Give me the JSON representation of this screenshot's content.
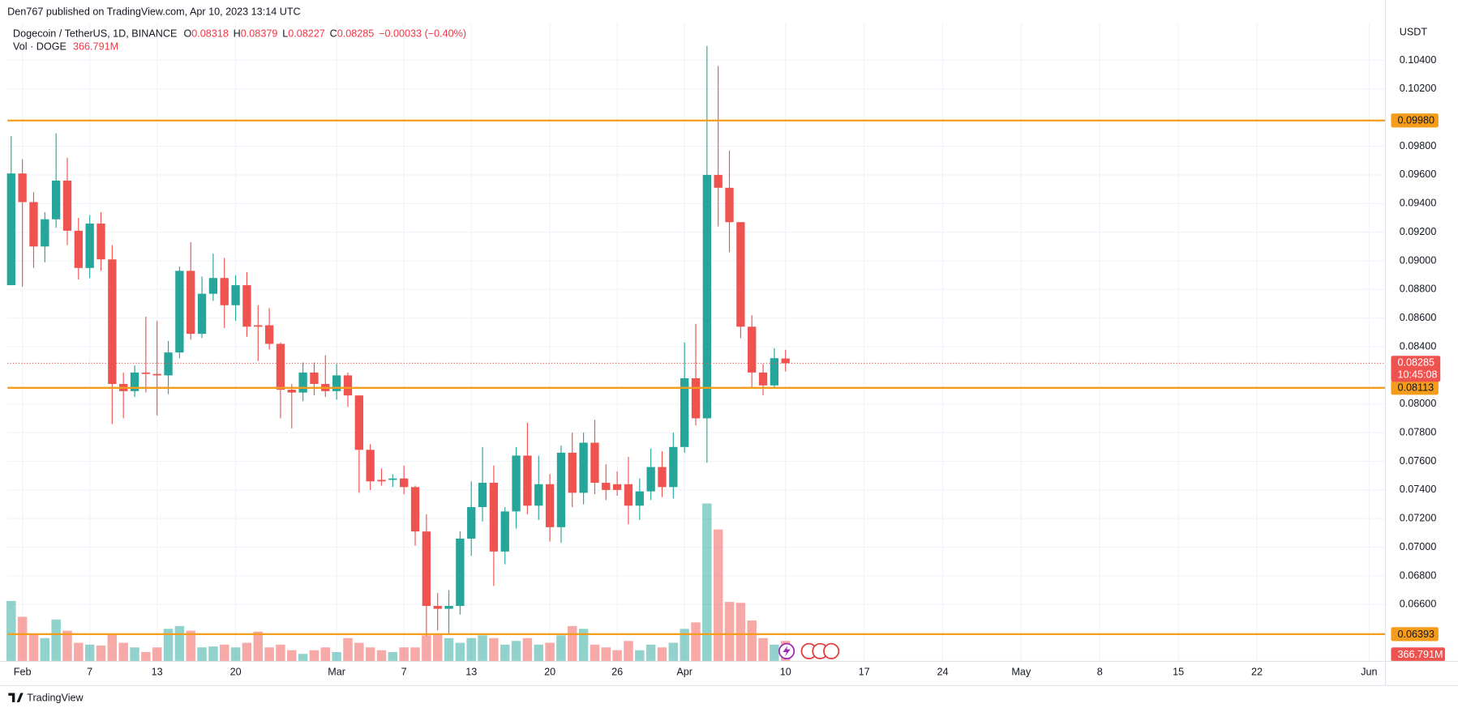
{
  "chart_data": {
    "type": "candlestick",
    "publisher": "Den767 published on TradingView.com, Apr 10, 2023 13:14 UTC",
    "title": "Dogecoin / TetherUS, 1D, BINANCE",
    "ohlc_labels": [
      "O",
      "H",
      "L",
      "C"
    ],
    "change_label": "−0.00033 (−0.40%)",
    "y_axis_label": "USDT",
    "countdown": "10:45:08",
    "brand": "TradingView",
    "up_color": "#26a69a",
    "down_color": "#ef5350",
    "up_volume_color": "rgba(38,166,154,0.5)",
    "down_volume_color": "rgba(239,83,80,0.5)",
    "grid": true,
    "x": [
      "2023-01-31",
      "2023-02-01",
      "2023-02-02",
      "2023-02-03",
      "2023-02-04",
      "2023-02-05",
      "2023-02-06",
      "2023-02-07",
      "2023-02-08",
      "2023-02-09",
      "2023-02-10",
      "2023-02-11",
      "2023-02-12",
      "2023-02-13",
      "2023-02-14",
      "2023-02-15",
      "2023-02-16",
      "2023-02-17",
      "2023-02-18",
      "2023-02-19",
      "2023-02-20",
      "2023-02-21",
      "2023-02-22",
      "2023-02-23",
      "2023-02-24",
      "2023-02-25",
      "2023-02-26",
      "2023-02-27",
      "2023-02-28",
      "2023-03-01",
      "2023-03-02",
      "2023-03-03",
      "2023-03-04",
      "2023-03-05",
      "2023-03-06",
      "2023-03-07",
      "2023-03-08",
      "2023-03-09",
      "2023-03-10",
      "2023-03-11",
      "2023-03-12",
      "2023-03-13",
      "2023-03-14",
      "2023-03-15",
      "2023-03-16",
      "2023-03-17",
      "2023-03-18",
      "2023-03-19",
      "2023-03-20",
      "2023-03-21",
      "2023-03-22",
      "2023-03-23",
      "2023-03-24",
      "2023-03-25",
      "2023-03-26",
      "2023-03-27",
      "2023-03-28",
      "2023-03-29",
      "2023-03-30",
      "2023-03-31",
      "2023-04-01",
      "2023-04-02",
      "2023-04-03",
      "2023-04-04",
      "2023-04-05",
      "2023-04-06",
      "2023-04-07",
      "2023-04-08",
      "2023-04-09",
      "2023-04-10"
    ],
    "open": [
      0.0883,
      0.0961,
      0.0941,
      0.091,
      0.0929,
      0.0956,
      0.0921,
      0.0895,
      0.0926,
      0.0901,
      0.0814,
      0.0809,
      0.0822,
      0.0821,
      0.082,
      0.0836,
      0.0893,
      0.0849,
      0.0877,
      0.0888,
      0.0869,
      0.0883,
      0.0855,
      0.0855,
      0.0842,
      0.081,
      0.0808,
      0.0822,
      0.0814,
      0.0809,
      0.082,
      0.0806,
      0.0768,
      0.0747,
      0.0747,
      0.0748,
      0.0742,
      0.0711,
      0.0659,
      0.0657,
      0.0659,
      0.0706,
      0.0728,
      0.0745,
      0.0697,
      0.0725,
      0.0764,
      0.0729,
      0.0744,
      0.0714,
      0.0766,
      0.0738,
      0.0773,
      0.0745,
      0.0744,
      0.0744,
      0.0729,
      0.0739,
      0.0756,
      0.0742,
      0.077,
      0.0818,
      0.079,
      0.096,
      0.0951,
      0.0927,
      0.0854,
      0.0822,
      0.0813,
      0.08318
    ],
    "high": [
      0.0987,
      0.0971,
      0.0948,
      0.0934,
      0.0989,
      0.0972,
      0.093,
      0.0932,
      0.0934,
      0.0911,
      0.0822,
      0.0827,
      0.0861,
      0.0858,
      0.0844,
      0.0896,
      0.0913,
      0.0889,
      0.0905,
      0.0902,
      0.089,
      0.0892,
      0.0869,
      0.0867,
      0.0843,
      0.0814,
      0.0829,
      0.0829,
      0.0834,
      0.0828,
      0.0822,
      0.0806,
      0.0772,
      0.0755,
      0.0751,
      0.0757,
      0.0743,
      0.0723,
      0.0668,
      0.067,
      0.0711,
      0.0746,
      0.077,
      0.0757,
      0.0728,
      0.077,
      0.0787,
      0.0764,
      0.0751,
      0.0771,
      0.078,
      0.078,
      0.0789,
      0.0758,
      0.0753,
      0.0763,
      0.0748,
      0.0769,
      0.0767,
      0.078,
      0.0843,
      0.0856,
      0.105,
      0.1036,
      0.0977,
      0.0927,
      0.0862,
      0.0828,
      0.0839,
      0.08379
    ],
    "low": [
      0.0883,
      0.0882,
      0.0895,
      0.0899,
      0.0923,
      0.0911,
      0.0887,
      0.0888,
      0.0893,
      0.0786,
      0.079,
      0.0805,
      0.0808,
      0.0792,
      0.0807,
      0.0832,
      0.0845,
      0.0846,
      0.0872,
      0.0853,
      0.0858,
      0.0847,
      0.083,
      0.0838,
      0.079,
      0.0783,
      0.0802,
      0.0806,
      0.0805,
      0.0803,
      0.0798,
      0.0738,
      0.074,
      0.0743,
      0.0742,
      0.0737,
      0.0701,
      0.0638,
      0.0642,
      0.0639,
      0.0653,
      0.0694,
      0.0718,
      0.0673,
      0.0688,
      0.0713,
      0.0723,
      0.0719,
      0.0704,
      0.0703,
      0.0728,
      0.073,
      0.0737,
      0.0733,
      0.0736,
      0.0716,
      0.0719,
      0.0733,
      0.0735,
      0.0734,
      0.0766,
      0.0785,
      0.0759,
      0.0924,
      0.0906,
      0.0846,
      0.0811,
      0.0806,
      0.0811,
      0.08227
    ],
    "close": [
      0.0961,
      0.0941,
      0.091,
      0.0929,
      0.0956,
      0.0921,
      0.0895,
      0.0926,
      0.0901,
      0.0814,
      0.0809,
      0.0822,
      0.0821,
      0.082,
      0.0836,
      0.0893,
      0.0849,
      0.0877,
      0.0888,
      0.0869,
      0.0883,
      0.0854,
      0.0854,
      0.0842,
      0.081,
      0.0808,
      0.0822,
      0.0814,
      0.0809,
      0.082,
      0.0806,
      0.0768,
      0.0746,
      0.0746,
      0.0748,
      0.0742,
      0.0711,
      0.0659,
      0.0657,
      0.0659,
      0.0706,
      0.0728,
      0.0745,
      0.0697,
      0.0725,
      0.0764,
      0.0729,
      0.0744,
      0.0714,
      0.0766,
      0.0738,
      0.0773,
      0.0745,
      0.074,
      0.074,
      0.0729,
      0.0739,
      0.0756,
      0.0742,
      0.077,
      0.0818,
      0.079,
      0.096,
      0.0951,
      0.0927,
      0.0854,
      0.0822,
      0.0813,
      0.0832,
      0.08285
    ],
    "volume": {
      "name": "Vol · DOGE",
      "values": [
        1086,
        802,
        501,
        418,
        752,
        551,
        334,
        301,
        284,
        501,
        334,
        251,
        167,
        251,
        585,
        635,
        551,
        251,
        267,
        301,
        251,
        334,
        534,
        251,
        301,
        200,
        134,
        200,
        251,
        167,
        418,
        334,
        251,
        200,
        167,
        251,
        251,
        468,
        501,
        418,
        334,
        418,
        468,
        418,
        301,
        367,
        418,
        301,
        334,
        468,
        635,
        585,
        301,
        251,
        200,
        367,
        200,
        301,
        251,
        334,
        585,
        701,
        2839,
        2371,
        1069,
        1052,
        735,
        418,
        301,
        366.791
      ],
      "value_labels": [
        null,
        null,
        null,
        null,
        null,
        null,
        null,
        null,
        null,
        null,
        null,
        null,
        null,
        null,
        null,
        null,
        null,
        null,
        null,
        null,
        null,
        null,
        null,
        null,
        null,
        null,
        null,
        null,
        null,
        null,
        null,
        null,
        null,
        null,
        null,
        null,
        null,
        null,
        null,
        null,
        null,
        null,
        null,
        null,
        null,
        null,
        null,
        null,
        null,
        null,
        null,
        null,
        null,
        null,
        null,
        null,
        null,
        null,
        null,
        null,
        null,
        null,
        null,
        null,
        null,
        null,
        null,
        null,
        null,
        "366.791M"
      ]
    },
    "levels": [
      {
        "value": 0.0998,
        "label": "0.09980"
      },
      {
        "value": 0.08113,
        "label": "0.08113"
      },
      {
        "value": 0.06393,
        "label": "0.06393"
      }
    ],
    "level_color": "#f59c1a",
    "xlim": [
      "2023-01-30T16:00",
      "2023-06-02T11:00"
    ],
    "xticks": [
      {
        "value": "2023-02-01",
        "label": "Feb"
      },
      {
        "value": "2023-02-07",
        "label": "7"
      },
      {
        "value": "2023-02-13",
        "label": "13"
      },
      {
        "value": "2023-02-20",
        "label": "20"
      },
      {
        "value": "2023-03-01",
        "label": "Mar"
      },
      {
        "value": "2023-03-07",
        "label": "7"
      },
      {
        "value": "2023-03-13",
        "label": "13"
      },
      {
        "value": "2023-03-20",
        "label": "20"
      },
      {
        "value": "2023-03-26",
        "label": "26"
      },
      {
        "value": "2023-04-01",
        "label": "Apr"
      },
      {
        "value": "2023-04-10",
        "label": "10"
      },
      {
        "value": "2023-04-17",
        "label": "17"
      },
      {
        "value": "2023-04-24",
        "label": "24"
      },
      {
        "value": "2023-05-01",
        "label": "May"
      },
      {
        "value": "2023-05-08",
        "label": "8"
      },
      {
        "value": "2023-05-15",
        "label": "15"
      },
      {
        "value": "2023-05-22",
        "label": "22"
      },
      {
        "value": "2023-06-01",
        "label": "Jun"
      }
    ],
    "ylim": [
      0.06203,
      0.10659
    ],
    "yticks": [
      {
        "value": 0.066,
        "label": "0.06600"
      },
      {
        "value": 0.068,
        "label": "0.06800"
      },
      {
        "value": 0.07,
        "label": "0.07000"
      },
      {
        "value": 0.072,
        "label": "0.07200"
      },
      {
        "value": 0.074,
        "label": "0.07400"
      },
      {
        "value": 0.076,
        "label": "0.07600"
      },
      {
        "value": 0.078,
        "label": "0.07800"
      },
      {
        "value": 0.08,
        "label": "0.08000"
      },
      {
        "value": 0.084,
        "label": "0.08400"
      },
      {
        "value": 0.086,
        "label": "0.08600"
      },
      {
        "value": 0.088,
        "label": "0.08800"
      },
      {
        "value": 0.09,
        "label": "0.09000"
      },
      {
        "value": 0.092,
        "label": "0.09200"
      },
      {
        "value": 0.094,
        "label": "0.09400"
      },
      {
        "value": 0.096,
        "label": "0.09600"
      },
      {
        "value": 0.098,
        "label": "0.09800"
      },
      {
        "value": 0.102,
        "label": "0.10200"
      },
      {
        "value": 0.104,
        "label": "0.10400"
      }
    ]
  }
}
